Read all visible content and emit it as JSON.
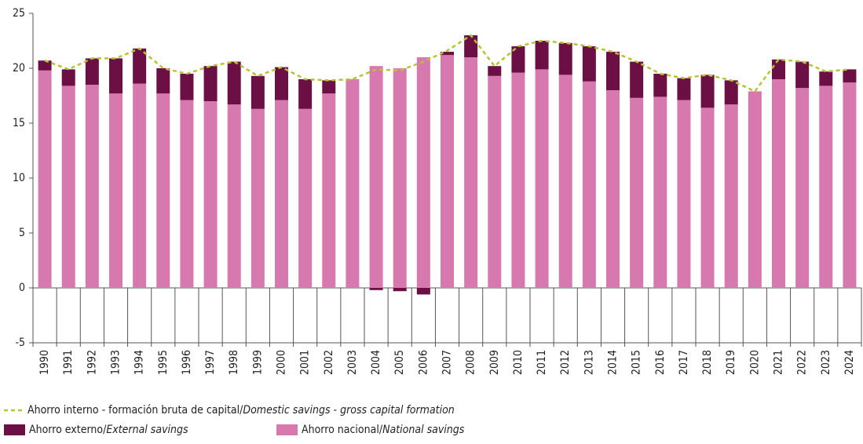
{
  "chart_data": {
    "type": "bar",
    "categories": [
      "1990",
      "1991",
      "1992",
      "1993",
      "1994",
      "1995",
      "1996",
      "1997",
      "1998",
      "1999",
      "2000",
      "2001",
      "2002",
      "2003",
      "2004",
      "2005",
      "2006",
      "2007",
      "2008",
      "2009",
      "2010",
      "2011",
      "2012",
      "2013",
      "2014",
      "2015",
      "2016",
      "2017",
      "2018",
      "2019",
      "2020",
      "2021",
      "2022",
      "2023",
      "2024"
    ],
    "stacked": true,
    "series": [
      {
        "name": "Ahorro nacional/National savings",
        "color": "#d779ae",
        "values": [
          19.8,
          18.4,
          18.5,
          17.7,
          18.6,
          17.7,
          17.1,
          17.0,
          16.7,
          16.3,
          17.1,
          16.3,
          17.7,
          19.0,
          20.2,
          20.0,
          21.0,
          21.2,
          21.0,
          19.3,
          19.6,
          19.9,
          19.4,
          18.8,
          18.0,
          17.3,
          17.4,
          17.1,
          16.4,
          16.7,
          17.9,
          19.0,
          18.2,
          18.4,
          18.7
        ]
      },
      {
        "name": "Ahorro externo/External savings",
        "color": "#6b0f45",
        "values": [
          0.9,
          1.5,
          2.4,
          3.2,
          3.2,
          2.3,
          2.4,
          3.2,
          3.9,
          3.0,
          3.0,
          2.7,
          1.2,
          0,
          -0.2,
          -0.3,
          -0.6,
          0.3,
          2.0,
          0.9,
          2.4,
          2.6,
          2.9,
          3.2,
          3.5,
          3.3,
          2.1,
          2.0,
          3.0,
          2.2,
          0,
          1.8,
          2.4,
          1.3,
          1.2
        ]
      },
      {
        "name": "Ahorro interno - formación bruta de capital/Domestic savings - gross capital formation",
        "color": "#b5c334",
        "type": "line",
        "dashed": true,
        "values": [
          20.7,
          19.9,
          20.9,
          20.9,
          21.8,
          20.0,
          19.5,
          20.2,
          20.6,
          19.3,
          20.1,
          19.0,
          18.9,
          19.0,
          19.9,
          19.8,
          20.6,
          21.6,
          23.0,
          20.2,
          22.0,
          22.5,
          22.3,
          22.0,
          21.5,
          20.6,
          19.5,
          19.1,
          19.4,
          18.9,
          17.9,
          20.8,
          20.6,
          19.7,
          19.9
        ]
      }
    ],
    "ylim": [
      -5,
      25
    ],
    "yticks": [
      -5,
      0,
      5,
      10,
      15,
      20,
      25
    ]
  }
}
